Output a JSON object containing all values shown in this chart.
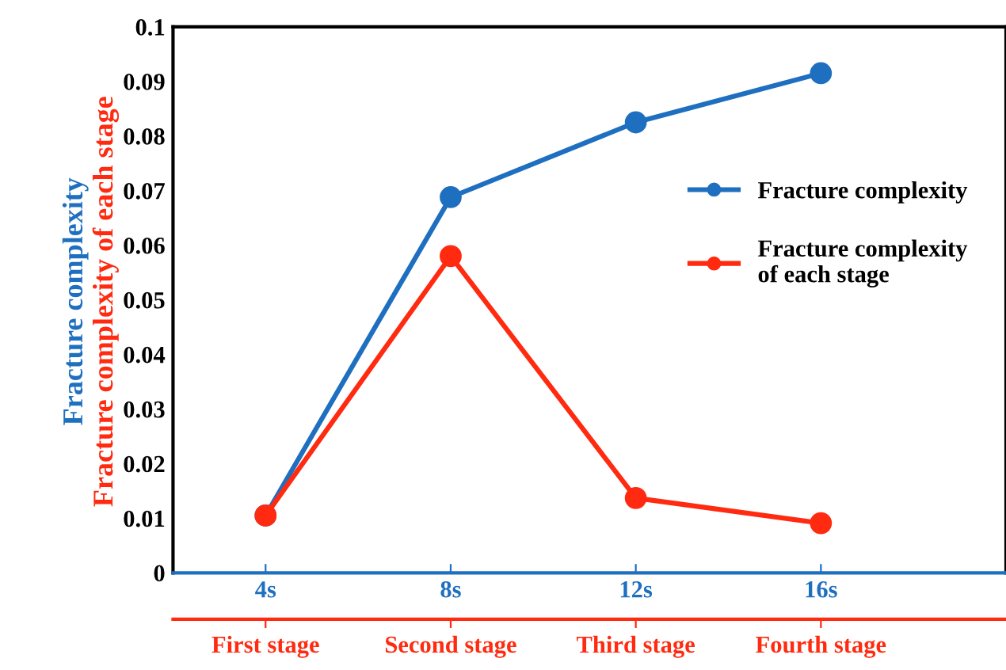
{
  "chart_data": {
    "type": "line",
    "categories": [
      "4s",
      "8s",
      "12s",
      "16s"
    ],
    "annotations": [
      {
        "text": "First stage",
        "x": "4s"
      },
      {
        "text": "Second stage",
        "x": "8s"
      },
      {
        "text": "Third stage",
        "x": "12s"
      },
      {
        "text": "Fourth stage",
        "x": "16s"
      }
    ],
    "ylabel": [
      "Fracture complexity",
      "Fracture complexity of each stage"
    ],
    "series": [
      {
        "name": "Fracture complexity",
        "color": "#1f6fc0",
        "values": [
          0.0105,
          0.0688,
          0.0825,
          0.0915
        ]
      },
      {
        "name": "Fracture complexity\nof each stage",
        "color": "#ff2a10",
        "values": [
          0.0105,
          0.058,
          0.0137,
          0.0091
        ]
      }
    ],
    "ylim": [
      0,
      0.1
    ],
    "yticks": [
      0,
      0.01,
      0.02,
      0.03,
      0.04,
      0.05,
      0.06,
      0.07,
      0.08,
      0.09,
      0.1
    ],
    "grid": false,
    "legend": "right",
    "marker": "circle",
    "line_style": "solid"
  }
}
